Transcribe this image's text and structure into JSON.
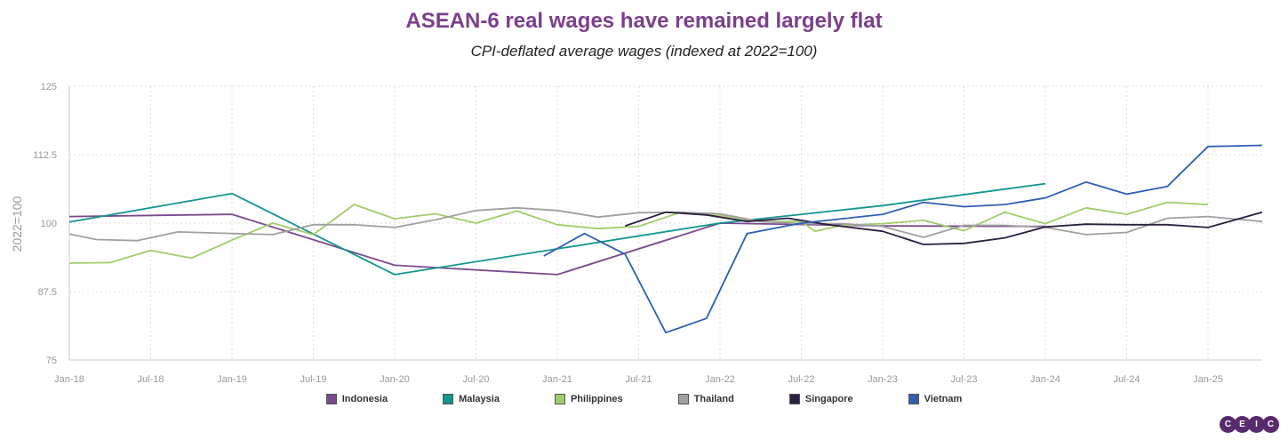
{
  "header": {
    "title": "ASEAN-6 real wages have remained largely flat",
    "subtitle": "CPI-deflated average wages (indexed at 2022=100)"
  },
  "logo": {
    "letters": [
      "C",
      "E",
      "I",
      "C"
    ],
    "color": "#5a2a6e"
  },
  "chart_data": {
    "type": "line",
    "title": "ASEAN-6 real wages have remained largely flat",
    "subtitle": "CPI-deflated average wages (indexed at 2022=100)",
    "ylabel": "2022=100",
    "xlabel": "",
    "ylim": [
      75,
      125
    ],
    "xlim": [
      "2018-01",
      "2025-05"
    ],
    "yticks": [
      75,
      87.5,
      100,
      112.5,
      125
    ],
    "ytick_labels": [
      "75",
      "87.5",
      "100",
      "112.5",
      "125"
    ],
    "xticks": [
      "2018-01",
      "2018-07",
      "2019-01",
      "2019-07",
      "2020-01",
      "2020-07",
      "2021-01",
      "2021-07",
      "2022-01",
      "2022-07",
      "2023-01",
      "2023-07",
      "2024-01",
      "2024-07",
      "2025-01"
    ],
    "xtick_labels": [
      "Jan-18",
      "Jul-18",
      "Jan-19",
      "Jul-19",
      "Jan-20",
      "Jul-20",
      "Jan-21",
      "Jul-21",
      "Jan-22",
      "Jul-22",
      "Jan-23",
      "Jul-23",
      "Jan-24",
      "Jul-24",
      "Jan-25"
    ],
    "grid": true,
    "legend_position": "bottom",
    "series": [
      {
        "name": "Indonesia",
        "color": "#7b4a8e",
        "points": [
          [
            "2018-01",
            101.2
          ],
          [
            "2019-01",
            101.6
          ],
          [
            "2020-01",
            92.3
          ],
          [
            "2021-01",
            90.6
          ],
          [
            "2022-01",
            100.0
          ],
          [
            "2023-01",
            99.5
          ],
          [
            "2024-01",
            99.4
          ]
        ]
      },
      {
        "name": "Malaysia",
        "color": "#13968f",
        "points": [
          [
            "2018-01",
            100.2
          ],
          [
            "2019-01",
            105.4
          ],
          [
            "2020-01",
            90.6
          ],
          [
            "2022-01",
            100.0
          ],
          [
            "2023-01",
            103.2
          ],
          [
            "2024-01",
            107.2
          ]
        ]
      },
      {
        "name": "Philippines",
        "color": "#a1cc6b",
        "points": [
          [
            "2018-01",
            92.7
          ],
          [
            "2018-04",
            92.8
          ],
          [
            "2018-07",
            95.0
          ],
          [
            "2018-10",
            93.6
          ],
          [
            "2019-01",
            96.9
          ],
          [
            "2019-04",
            100.0
          ],
          [
            "2019-07",
            97.9
          ],
          [
            "2019-10",
            103.4
          ],
          [
            "2020-01",
            100.8
          ],
          [
            "2020-04",
            101.7
          ],
          [
            "2020-07",
            100.0
          ],
          [
            "2020-10",
            102.2
          ],
          [
            "2021-01",
            99.7
          ],
          [
            "2021-04",
            99.0
          ],
          [
            "2021-07",
            99.4
          ],
          [
            "2021-10",
            101.9
          ],
          [
            "2022-01",
            101.4
          ],
          [
            "2022-04",
            100.3
          ],
          [
            "2022-07",
            100.3
          ],
          [
            "2022-08",
            98.5
          ],
          [
            "2022-10",
            99.6
          ],
          [
            "2023-01",
            99.9
          ],
          [
            "2023-04",
            100.5
          ],
          [
            "2023-07",
            98.6
          ],
          [
            "2023-10",
            102.0
          ],
          [
            "2024-01",
            99.9
          ],
          [
            "2024-04",
            102.8
          ],
          [
            "2024-07",
            101.6
          ],
          [
            "2024-10",
            103.8
          ],
          [
            "2025-01",
            103.4
          ]
        ]
      },
      {
        "name": "Thailand",
        "color": "#a0a0a0",
        "points": [
          [
            "2018-01",
            98.0
          ],
          [
            "2018-03",
            97.0
          ],
          [
            "2018-06",
            96.8
          ],
          [
            "2018-09",
            98.4
          ],
          [
            "2019-01",
            98.1
          ],
          [
            "2019-04",
            97.9
          ],
          [
            "2019-07",
            99.7
          ],
          [
            "2019-10",
            99.7
          ],
          [
            "2020-01",
            99.2
          ],
          [
            "2020-04",
            100.6
          ],
          [
            "2020-07",
            102.3
          ],
          [
            "2020-10",
            102.8
          ],
          [
            "2021-01",
            102.3
          ],
          [
            "2021-04",
            101.1
          ],
          [
            "2021-07",
            101.9
          ],
          [
            "2021-10",
            102.0
          ],
          [
            "2022-01",
            101.7
          ],
          [
            "2022-04",
            100.3
          ],
          [
            "2022-07",
            99.9
          ],
          [
            "2022-10",
            99.9
          ],
          [
            "2023-01",
            99.4
          ],
          [
            "2023-04",
            97.4
          ],
          [
            "2023-07",
            99.6
          ],
          [
            "2023-10",
            99.6
          ],
          [
            "2024-01",
            99.2
          ],
          [
            "2024-04",
            97.9
          ],
          [
            "2024-07",
            98.3
          ],
          [
            "2024-10",
            100.9
          ],
          [
            "2025-01",
            101.2
          ],
          [
            "2025-05",
            100.3
          ]
        ]
      },
      {
        "name": "Singapore",
        "color": "#2b1f3f",
        "points": [
          [
            "2021-06",
            99.5
          ],
          [
            "2021-09",
            102.0
          ],
          [
            "2021-12",
            101.5
          ],
          [
            "2022-03",
            100.3
          ],
          [
            "2022-06",
            100.9
          ],
          [
            "2022-09",
            99.7
          ],
          [
            "2023-01",
            98.5
          ],
          [
            "2023-04",
            96.1
          ],
          [
            "2023-07",
            96.3
          ],
          [
            "2023-10",
            97.3
          ],
          [
            "2024-01",
            99.3
          ],
          [
            "2024-04",
            99.8
          ],
          [
            "2024-07",
            99.7
          ],
          [
            "2024-10",
            99.7
          ],
          [
            "2025-01",
            99.2
          ],
          [
            "2025-05",
            102.0
          ]
        ]
      },
      {
        "name": "Vietnam",
        "color": "#2e5fb5",
        "points": [
          [
            "2020-12",
            94.0
          ],
          [
            "2021-03",
            98.1
          ],
          [
            "2021-06",
            94.3
          ],
          [
            "2021-09",
            80.0
          ],
          [
            "2021-12",
            82.6
          ],
          [
            "2022-03",
            98.1
          ],
          [
            "2022-07",
            100.0
          ],
          [
            "2022-10",
            100.8
          ],
          [
            "2023-01",
            101.6
          ],
          [
            "2023-04",
            103.8
          ],
          [
            "2023-07",
            103.0
          ],
          [
            "2023-10",
            103.4
          ],
          [
            "2024-01",
            104.6
          ],
          [
            "2024-04",
            107.5
          ],
          [
            "2024-07",
            105.3
          ],
          [
            "2024-10",
            106.7
          ],
          [
            "2025-01",
            114.0
          ],
          [
            "2025-05",
            114.2
          ]
        ]
      }
    ]
  }
}
